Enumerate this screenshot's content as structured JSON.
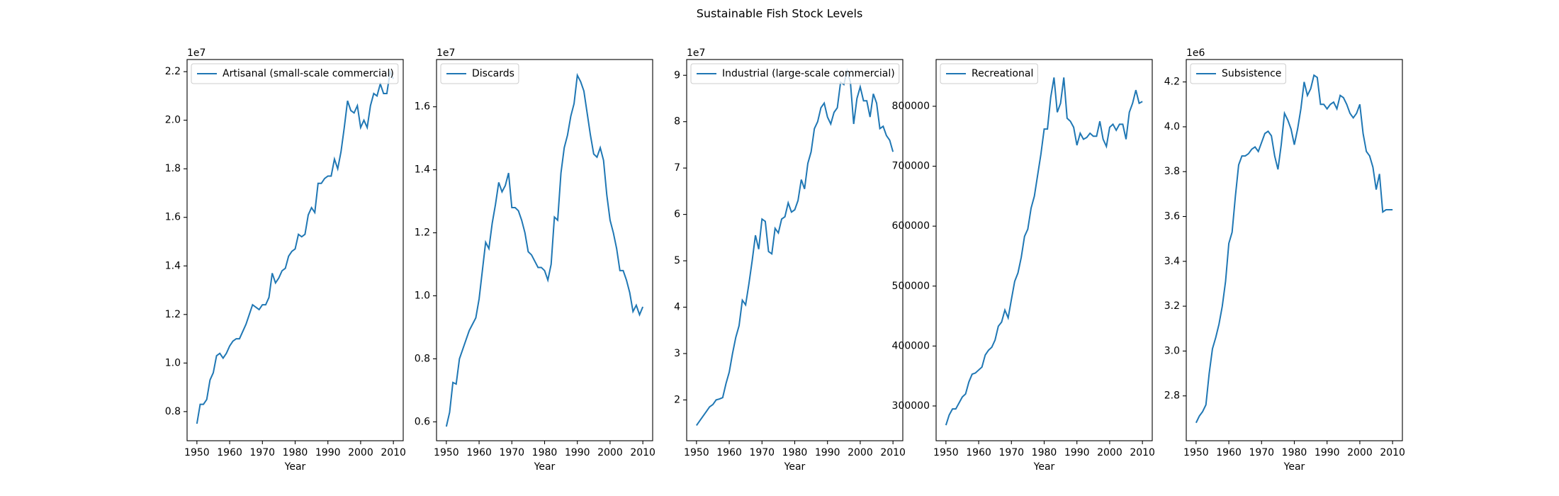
{
  "title": "Sustainable Fish Stock Levels",
  "chart_data": [
    {
      "type": "line",
      "xlabel": "Year",
      "offset_text": "1e7",
      "legend": "upper left",
      "x": [
        1950,
        1951,
        1952,
        1953,
        1954,
        1955,
        1956,
        1957,
        1958,
        1959,
        1960,
        1961,
        1962,
        1963,
        1964,
        1965,
        1966,
        1967,
        1968,
        1969,
        1970,
        1971,
        1972,
        1973,
        1974,
        1975,
        1976,
        1977,
        1978,
        1979,
        1980,
        1981,
        1982,
        1983,
        1984,
        1985,
        1986,
        1987,
        1988,
        1989,
        1990,
        1991,
        1992,
        1993,
        1994,
        1995,
        1996,
        1997,
        1998,
        1999,
        2000,
        2001,
        2002,
        2003,
        2004,
        2005,
        2006,
        2007,
        2008,
        2009,
        2010
      ],
      "series": [
        {
          "name": "Artisanal (small-scale commercial)",
          "color": "#1f77b4",
          "values": [
            0.75,
            0.83,
            0.83,
            0.85,
            0.93,
            0.96,
            1.03,
            1.04,
            1.02,
            1.04,
            1.07,
            1.09,
            1.1,
            1.1,
            1.13,
            1.16,
            1.2,
            1.24,
            1.23,
            1.22,
            1.24,
            1.24,
            1.27,
            1.37,
            1.33,
            1.35,
            1.38,
            1.39,
            1.44,
            1.46,
            1.47,
            1.53,
            1.52,
            1.53,
            1.61,
            1.64,
            1.62,
            1.74,
            1.74,
            1.76,
            1.77,
            1.77,
            1.84,
            1.8,
            1.87,
            1.97,
            2.08,
            2.04,
            2.03,
            2.06,
            1.97,
            2.0,
            1.97,
            2.06,
            2.11,
            2.1,
            2.15,
            2.11,
            2.11,
            2.2,
            2.17
          ]
        }
      ],
      "xlim": [
        1947,
        2013
      ],
      "xticks": [
        1950,
        1960,
        1970,
        1980,
        1990,
        2000,
        2010
      ],
      "ylim": [
        0.68,
        2.25
      ],
      "yticks": [
        0.8,
        {
          "value": 1,
          "label": "1.0"
        },
        1.2,
        1.4,
        1.6,
        1.8,
        {
          "value": 2,
          "label": "2.0"
        },
        2.2
      ]
    },
    {
      "type": "line",
      "xlabel": "Year",
      "offset_text": "1e7",
      "legend": "upper left",
      "x": [
        1950,
        1951,
        1952,
        1953,
        1954,
        1955,
        1956,
        1957,
        1958,
        1959,
        1960,
        1961,
        1962,
        1963,
        1964,
        1965,
        1966,
        1967,
        1968,
        1969,
        1970,
        1971,
        1972,
        1973,
        1974,
        1975,
        1976,
        1977,
        1978,
        1979,
        1980,
        1981,
        1982,
        1983,
        1984,
        1985,
        1986,
        1987,
        1988,
        1989,
        1990,
        1991,
        1992,
        1993,
        1994,
        1995,
        1996,
        1997,
        1998,
        1999,
        2000,
        2001,
        2002,
        2003,
        2004,
        2005,
        2006,
        2007,
        2008,
        2009,
        2010
      ],
      "series": [
        {
          "name": "Discards",
          "color": "#1f77b4",
          "values": [
            0.585,
            0.63,
            0.725,
            0.72,
            0.8,
            0.83,
            0.86,
            0.89,
            0.91,
            0.93,
            0.99,
            1.08,
            1.17,
            1.15,
            1.23,
            1.29,
            1.36,
            1.33,
            1.35,
            1.39,
            1.28,
            1.28,
            1.27,
            1.24,
            1.2,
            1.14,
            1.13,
            1.11,
            1.09,
            1.09,
            1.08,
            1.05,
            1.1,
            1.25,
            1.24,
            1.39,
            1.47,
            1.51,
            1.57,
            1.61,
            1.7,
            1.68,
            1.65,
            1.58,
            1.51,
            1.45,
            1.44,
            1.47,
            1.43,
            1.32,
            1.24,
            1.2,
            1.15,
            1.08,
            1.08,
            1.05,
            1.01,
            0.95,
            0.97,
            0.94,
            0.965
          ]
        }
      ],
      "xlim": [
        1947,
        2013
      ],
      "xticks": [
        1950,
        1960,
        1970,
        1980,
        1990,
        2000,
        2010
      ],
      "ylim": [
        0.54,
        1.75
      ],
      "yticks": [
        0.6,
        0.8,
        {
          "value": 1,
          "label": "1.0"
        },
        1.2,
        1.4,
        1.6
      ]
    },
    {
      "type": "line",
      "xlabel": "Year",
      "offset_text": "1e7",
      "legend": "upper left",
      "x": [
        1950,
        1951,
        1952,
        1953,
        1954,
        1955,
        1956,
        1957,
        1958,
        1959,
        1960,
        1961,
        1962,
        1963,
        1964,
        1965,
        1966,
        1967,
        1968,
        1969,
        1970,
        1971,
        1972,
        1973,
        1974,
        1975,
        1976,
        1977,
        1978,
        1979,
        1980,
        1981,
        1982,
        1983,
        1984,
        1985,
        1986,
        1987,
        1988,
        1989,
        1990,
        1991,
        1992,
        1993,
        1994,
        1995,
        1996,
        1997,
        1998,
        1999,
        2000,
        2001,
        2002,
        2003,
        2004,
        2005,
        2006,
        2007,
        2008,
        2009,
        2010
      ],
      "series": [
        {
          "name": "Industrial (large-scale commercial)",
          "color": "#1f77b4",
          "values": [
            1.45,
            1.55,
            1.65,
            1.75,
            1.85,
            1.9,
            2.0,
            2.02,
            2.05,
            2.35,
            2.6,
            3.0,
            3.35,
            3.6,
            4.15,
            4.05,
            4.5,
            5.0,
            5.55,
            5.25,
            5.9,
            5.85,
            5.2,
            5.15,
            5.7,
            5.6,
            5.9,
            5.95,
            6.25,
            6.05,
            6.1,
            6.3,
            6.75,
            6.55,
            7.1,
            7.35,
            7.85,
            8.0,
            8.3,
            8.4,
            8.1,
            7.95,
            8.2,
            8.3,
            8.85,
            8.8,
            9.1,
            8.85,
            7.95,
            8.5,
            8.75,
            8.45,
            8.45,
            8.1,
            8.6,
            8.4,
            7.85,
            7.9,
            7.7,
            7.6,
            7.35
          ]
        }
      ],
      "xlim": [
        1947,
        2013
      ],
      "xticks": [
        1950,
        1960,
        1970,
        1980,
        1990,
        2000,
        2010
      ],
      "ylim": [
        1.12,
        9.34
      ],
      "yticks": [
        2,
        3,
        4,
        5,
        6,
        7,
        8,
        9
      ]
    },
    {
      "type": "line",
      "xlabel": "Year",
      "legend": "upper left",
      "x": [
        1950,
        1951,
        1952,
        1953,
        1954,
        1955,
        1956,
        1957,
        1958,
        1959,
        1960,
        1961,
        1962,
        1963,
        1964,
        1965,
        1966,
        1967,
        1968,
        1969,
        1970,
        1971,
        1972,
        1973,
        1974,
        1975,
        1976,
        1977,
        1978,
        1979,
        1980,
        1981,
        1982,
        1983,
        1984,
        1985,
        1986,
        1987,
        1988,
        1989,
        1990,
        1991,
        1992,
        1993,
        1994,
        1995,
        1996,
        1997,
        1998,
        1999,
        2000,
        2001,
        2002,
        2003,
        2004,
        2005,
        2006,
        2007,
        2008,
        2009,
        2010
      ],
      "series": [
        {
          "name": "Recreational",
          "color": "#1f77b4",
          "values": [
            268000,
            285000,
            295000,
            295000,
            305000,
            315000,
            320000,
            340000,
            353000,
            355000,
            360000,
            365000,
            385000,
            393000,
            398000,
            410000,
            433000,
            440000,
            460000,
            447000,
            478000,
            508000,
            522000,
            548000,
            583000,
            595000,
            630000,
            650000,
            685000,
            720000,
            762000,
            762000,
            815000,
            848000,
            790000,
            805000,
            848000,
            780000,
            775000,
            765000,
            735000,
            755000,
            745000,
            748000,
            755000,
            750000,
            750000,
            775000,
            745000,
            733000,
            765000,
            770000,
            760000,
            770000,
            770000,
            745000,
            790000,
            805000,
            827000,
            805000,
            808000
          ]
        }
      ],
      "xlim": [
        1947,
        2013
      ],
      "xticks": [
        1950,
        1960,
        1970,
        1980,
        1990,
        2000,
        2010
      ],
      "ylim": [
        242000,
        878000
      ],
      "yticks": [
        300000,
        400000,
        500000,
        600000,
        700000,
        800000
      ]
    },
    {
      "type": "line",
      "xlabel": "Year",
      "offset_text": "1e6",
      "legend": "upper left",
      "x": [
        1950,
        1951,
        1952,
        1953,
        1954,
        1955,
        1956,
        1957,
        1958,
        1959,
        1960,
        1961,
        1962,
        1963,
        1964,
        1965,
        1966,
        1967,
        1968,
        1969,
        1970,
        1971,
        1972,
        1973,
        1974,
        1975,
        1976,
        1977,
        1978,
        1979,
        1980,
        1981,
        1982,
        1983,
        1984,
        1985,
        1986,
        1987,
        1988,
        1989,
        1990,
        1991,
        1992,
        1993,
        1994,
        1995,
        1996,
        1997,
        1998,
        1999,
        2000,
        2001,
        2002,
        2003,
        2004,
        2005,
        2006,
        2007,
        2008,
        2009,
        2010
      ],
      "series": [
        {
          "name": "Subsistence",
          "color": "#1f77b4",
          "values": [
            2.68,
            2.71,
            2.73,
            2.76,
            2.9,
            3.01,
            3.06,
            3.12,
            3.2,
            3.31,
            3.48,
            3.53,
            3.69,
            3.83,
            3.87,
            3.87,
            3.88,
            3.9,
            3.91,
            3.89,
            3.93,
            3.97,
            3.98,
            3.96,
            3.87,
            3.81,
            3.92,
            4.06,
            4.03,
            3.99,
            3.92,
            3.99,
            4.08,
            4.2,
            4.14,
            4.17,
            4.23,
            4.22,
            4.1,
            4.1,
            4.08,
            4.1,
            4.11,
            4.08,
            4.14,
            4.13,
            4.1,
            4.06,
            4.04,
            4.06,
            4.1,
            3.97,
            3.89,
            3.87,
            3.82,
            3.72,
            3.79,
            3.62,
            3.63,
            3.63,
            3.63
          ]
        }
      ],
      "xlim": [
        1947,
        2013
      ],
      "xticks": [
        1950,
        1960,
        1970,
        1980,
        1990,
        2000,
        2010
      ],
      "ylim": [
        2.6,
        4.3
      ],
      "yticks": [
        {
          "value": 2.8,
          "label": "2.8"
        },
        {
          "value": 3,
          "label": "3.0"
        },
        3.2,
        3.4,
        3.6,
        3.8,
        {
          "value": 4,
          "label": "4.0"
        },
        4.2
      ]
    }
  ]
}
